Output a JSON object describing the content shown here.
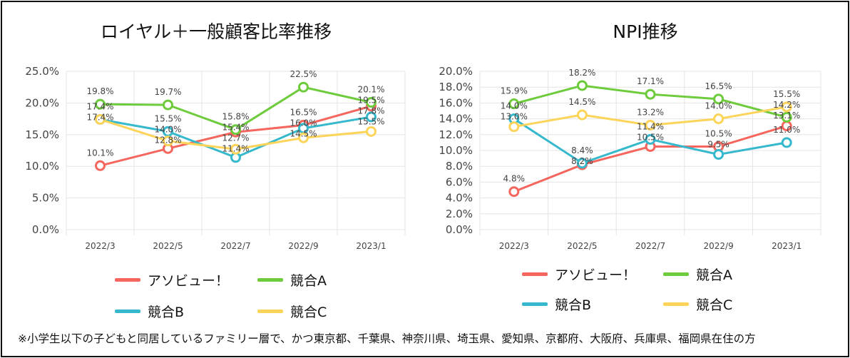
{
  "chart_data": [
    {
      "type": "line",
      "title": "ロイヤル＋一般顧客比率推移",
      "categories": [
        "2022/3",
        "2022/5",
        "2022/7",
        "2022/9",
        "2023/1"
      ],
      "ylim": [
        0,
        25
      ],
      "yticks": [
        "0.0%",
        "5.0%",
        "10.0%",
        "15.0%",
        "20.0%",
        "25.0%"
      ],
      "ytick_values": [
        0,
        5,
        10,
        15,
        20,
        25
      ],
      "grid": true,
      "legend_position": "bottom",
      "series": [
        {
          "name": "アソビュー！",
          "color": "#f4665e",
          "values": [
            10.1,
            12.8,
            15.4,
            16.5,
            19.5
          ]
        },
        {
          "name": "競合A",
          "color": "#6ecb3c",
          "values": [
            19.8,
            19.7,
            15.8,
            22.5,
            20.1
          ]
        },
        {
          "name": "競合B",
          "color": "#36b9cc",
          "values": [
            17.4,
            15.5,
            11.4,
            16.0,
            17.8
          ]
        },
        {
          "name": "競合C",
          "color": "#fcd45a",
          "values": [
            17.4,
            14.0,
            12.7,
            14.5,
            15.5
          ]
        }
      ]
    },
    {
      "type": "line",
      "title": "NPI推移",
      "categories": [
        "2022/3",
        "2022/5",
        "2022/7",
        "2022/9",
        "2023/1"
      ],
      "ylim": [
        0,
        20
      ],
      "yticks": [
        "0.0%",
        "2.0%",
        "4.0%",
        "6.0%",
        "8.0%",
        "10.0%",
        "12.0%",
        "14.0%",
        "16.0%",
        "18.0%",
        "20.0%"
      ],
      "ytick_values": [
        0,
        2,
        4,
        6,
        8,
        10,
        12,
        14,
        16,
        18,
        20
      ],
      "grid": true,
      "legend_position": "bottom",
      "series": [
        {
          "name": "アソビュー！",
          "color": "#f4665e",
          "values": [
            4.8,
            8.2,
            10.5,
            10.5,
            13.1
          ]
        },
        {
          "name": "競合A",
          "color": "#6ecb3c",
          "values": [
            15.9,
            18.2,
            17.1,
            16.5,
            14.2
          ]
        },
        {
          "name": "競合B",
          "color": "#36b9cc",
          "values": [
            14.0,
            8.4,
            11.4,
            9.5,
            11.0
          ]
        },
        {
          "name": "競合C",
          "color": "#fcd45a",
          "values": [
            13.0,
            14.5,
            13.2,
            14.0,
            15.5
          ]
        }
      ]
    }
  ],
  "footnote": "※小学生以下の子どもと同居しているファミリー層で、かつ東京都、千葉県、神奈川県、埼玉県、愛知県、京都府、大阪府、兵庫県、福岡県在住の方"
}
